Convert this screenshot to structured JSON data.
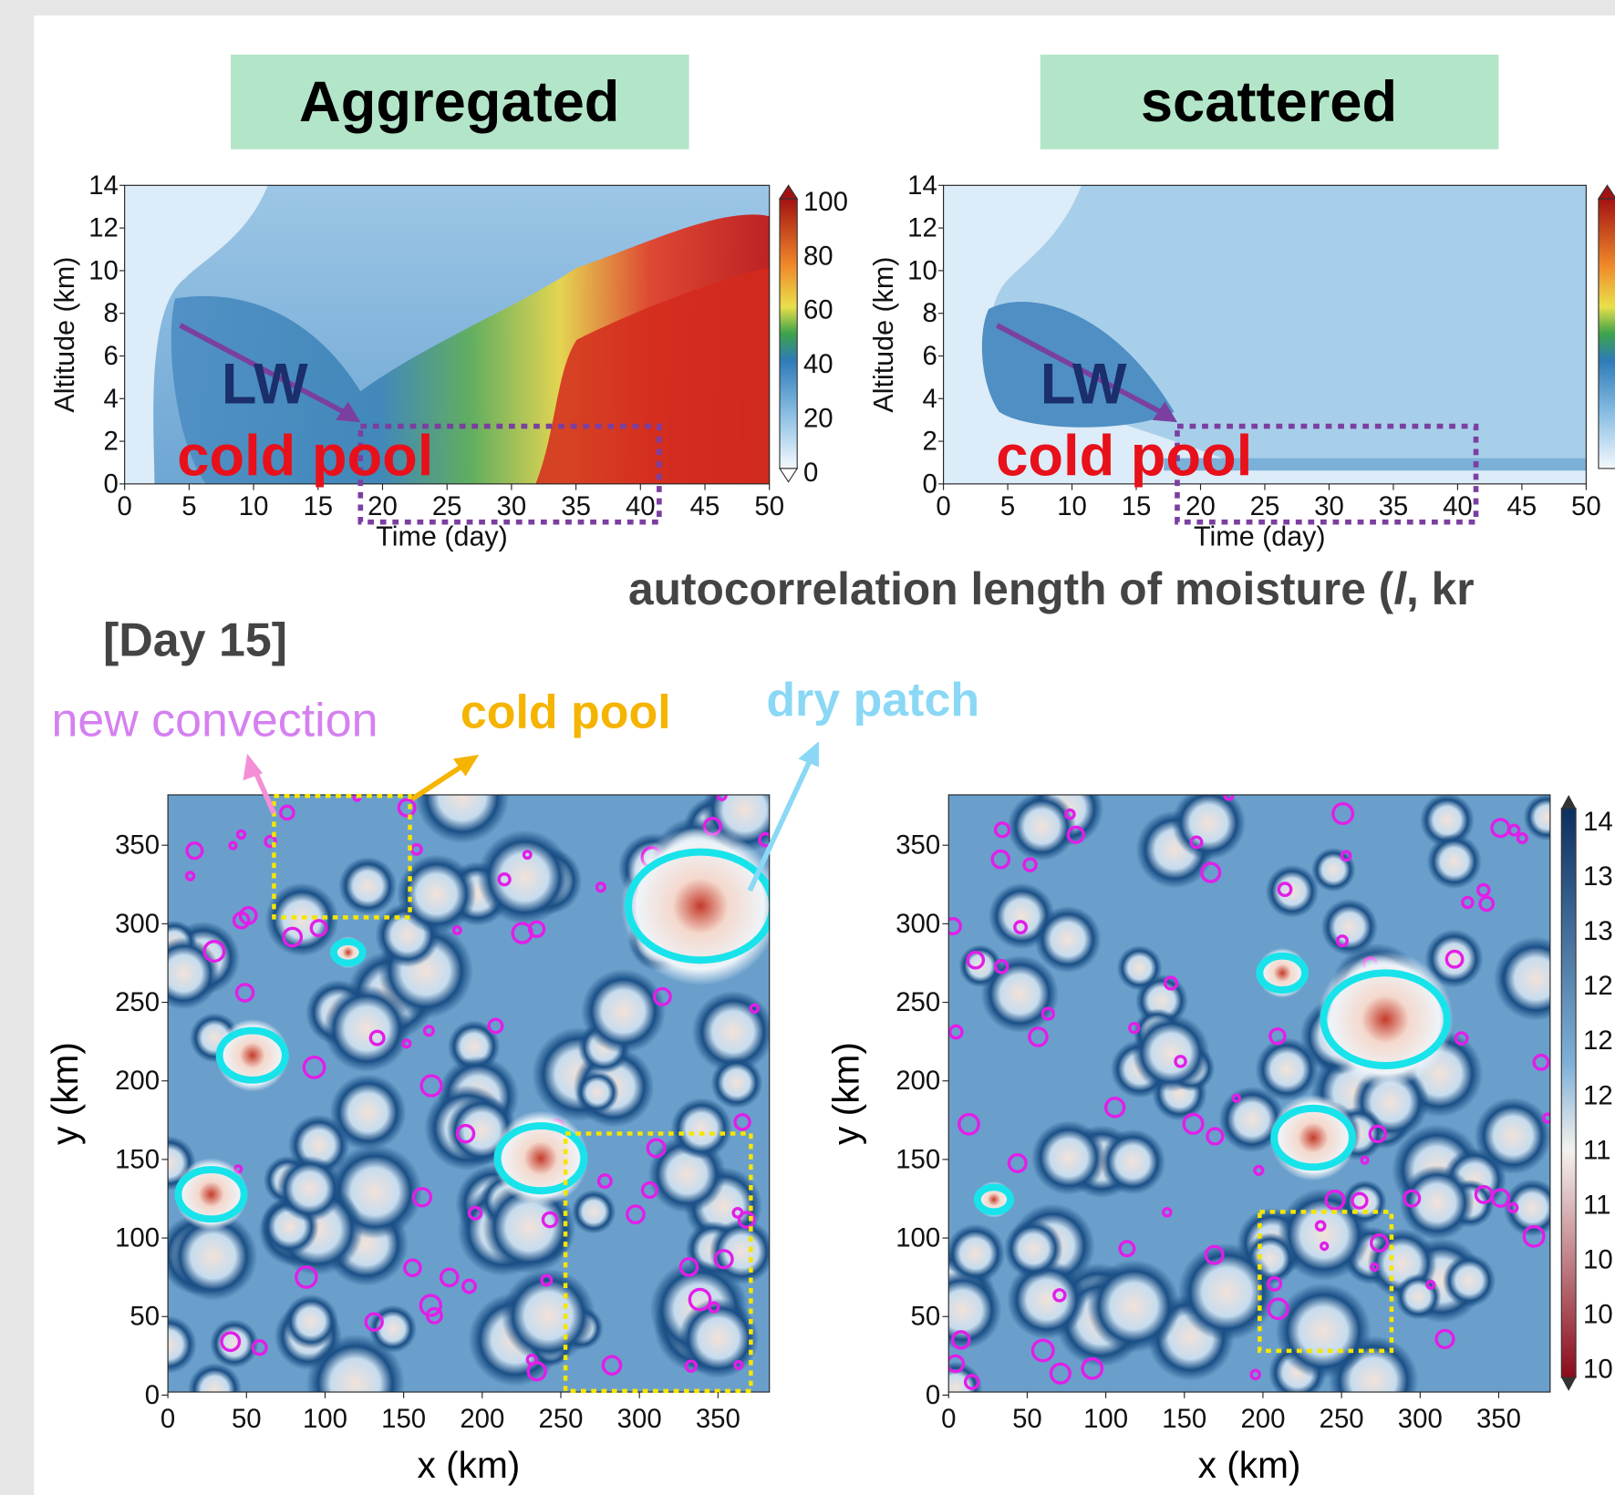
{
  "panels": [
    {
      "header": "Aggregated",
      "time_height": {
        "y_label": "Altitude (km)",
        "x_label": "Time (day)",
        "yticks": [
          0,
          2,
          4,
          6,
          8,
          10,
          12,
          14
        ],
        "xticks": [
          0,
          5,
          10,
          15,
          20,
          25,
          30,
          35,
          40,
          45,
          50
        ],
        "colorbar_ticks": [
          0,
          20,
          40,
          60,
          80,
          100
        ],
        "annotations": [
          "LW",
          "cold pool"
        ]
      },
      "map": {
        "y_label": "y (km)",
        "x_label": "x (km)",
        "yticks": [
          0,
          50,
          100,
          150,
          200,
          250,
          300,
          350
        ],
        "xticks": [
          0,
          50,
          100,
          150,
          200,
          250,
          300,
          350
        ]
      }
    },
    {
      "header": "scattered",
      "time_height": {
        "y_label": "Altitude (km)",
        "x_label": "Time (day)",
        "yticks": [
          0,
          2,
          4,
          6,
          8,
          10,
          12,
          14
        ],
        "xticks": [
          0,
          5,
          10,
          15,
          20,
          25,
          30,
          35,
          40,
          45,
          50
        ],
        "annotations": [
          "LW",
          "cold pool"
        ]
      },
      "map": {
        "y_label": "y (km)",
        "x_label": "x (km)",
        "yticks": [
          0,
          50,
          100,
          150,
          200,
          250,
          300,
          350
        ],
        "xticks": [
          0,
          50,
          100,
          150,
          200,
          250,
          300,
          350
        ],
        "colorbar_ticks": [
          "14",
          "13",
          "13",
          "12",
          "12",
          "12",
          "11",
          "11",
          "10",
          "10",
          "10"
        ]
      }
    }
  ],
  "subtitle": {
    "prefix": "autocorrelation length of moisture (",
    "variable": "l",
    "suffix": ", kr"
  },
  "day_label": "[Day 15]",
  "annotations": {
    "new_convection": "new convection",
    "cold_pool": "cold pool",
    "dry_patch": "dry patch"
  }
}
